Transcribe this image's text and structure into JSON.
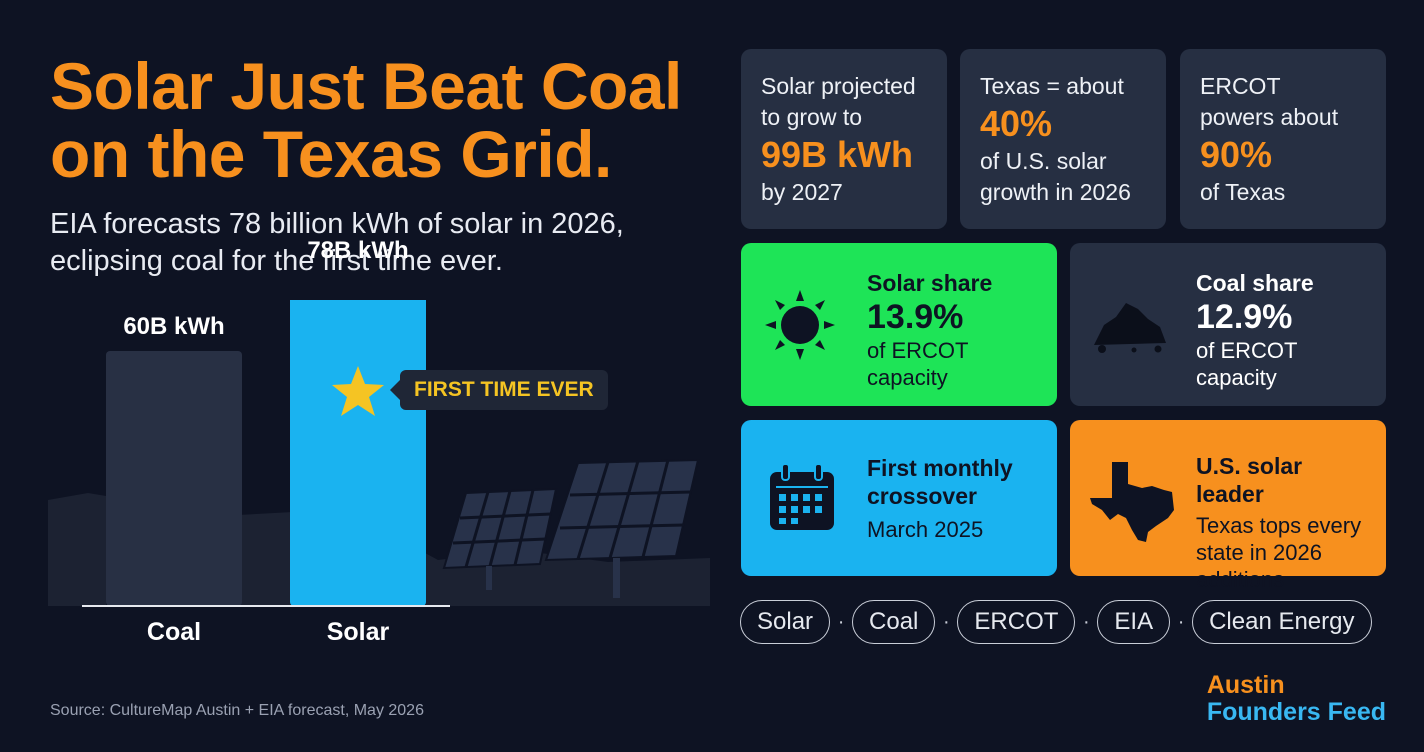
{
  "headline": {
    "line1": "Solar Just Beat Coal",
    "line2": "on the Texas Grid."
  },
  "subheadline": {
    "line1": "EIA forecasts 78 billion kWh of solar in 2026,",
    "line2": "eclipsing coal for the first time ever."
  },
  "chart_data": {
    "type": "bar",
    "categories": [
      "Coal",
      "Solar"
    ],
    "values": [
      60,
      78
    ],
    "value_labels": [
      "60B kWh",
      "78B kWh"
    ],
    "annotation": "FIRST TIME EVER",
    "colors": {
      "Coal": "#283044",
      "Solar": "#1ab3f0"
    }
  },
  "stats": [
    {
      "line1": "Solar projected",
      "line2": "to grow to",
      "big": "99B kWh",
      "line3": "by 2027"
    },
    {
      "line1": "Texas = about",
      "big": "40%",
      "line2": "of U.S. solar",
      "line3": "growth in 2026"
    },
    {
      "line1": "ERCOT",
      "line2": "powers about",
      "big": "90%",
      "line3": "of Texas"
    }
  ],
  "features": {
    "solar_share": {
      "label": "Solar share",
      "big": "13.9%",
      "sub1": "of ERCOT",
      "sub2": "capacity",
      "color": "#1ee457",
      "icon": "sun-icon"
    },
    "coal_share": {
      "label": "Coal share",
      "big": "12.9%",
      "sub1": "of ERCOT",
      "sub2": "capacity",
      "color": "#262f42",
      "icon": "coal-pile-icon"
    },
    "crossover": {
      "label1": "First monthly",
      "label2": "crossover",
      "sub": "March 2025",
      "color": "#1ab3f0",
      "icon": "calendar-icon"
    },
    "leader": {
      "label": "U.S. solar leader",
      "sub1": "Texas tops every",
      "sub2": "state in 2026",
      "sub3": "additions",
      "color": "#f7901e",
      "icon": "texas-map-icon"
    }
  },
  "tags": [
    "Solar",
    "Coal",
    "ERCOT",
    "EIA",
    "Clean Energy"
  ],
  "tag_separator": "·",
  "source": "Source: CultureMap Austin + EIA forecast, May 2026",
  "brand": {
    "line1": "Austin",
    "line2": "Founders Feed"
  }
}
